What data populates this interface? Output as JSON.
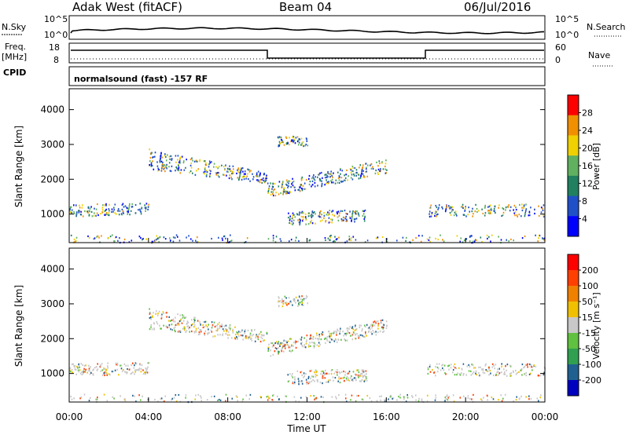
{
  "header": {
    "station": "Adak West (fitACF)",
    "beam": "Beam 04",
    "date": "06/Jul/2016"
  },
  "noise_panel": {
    "left_label": "N.Sky",
    "right_label": "N.Search",
    "left_ticks": [
      "10^5",
      "10^0"
    ],
    "right_ticks": [
      "10^5",
      "10^0"
    ]
  },
  "freq_panel": {
    "left_label_line1": "Freq.",
    "left_label_line2": "[MHz]",
    "left_ticks": [
      "18",
      "8"
    ],
    "right_label": "Nave",
    "right_ticks": [
      "60",
      "0"
    ],
    "cpid_label": "CPID",
    "cpid_text": "normalsound (fast) -157 RF"
  },
  "chart_data": [
    {
      "type": "heatmap",
      "name": "power",
      "ylabel": "Slant Range [km]",
      "y_ticks": [
        "4000",
        "3000",
        "2000",
        "1000"
      ],
      "y_tick_values": [
        4000,
        3000,
        2000,
        1000
      ],
      "ylim": [
        180,
        4600
      ],
      "colorbar_label": "Power [dB]",
      "colorbar_ticks": [
        "28",
        "24",
        "20",
        "16",
        "12",
        "8",
        "4"
      ],
      "colorbar_range": [
        0,
        32
      ],
      "colorbar_colors": [
        "#0000ff",
        "#2050c8",
        "#208060",
        "#60b060",
        "#f0d000",
        "#f09000",
        "#ff0000"
      ]
    },
    {
      "type": "heatmap",
      "name": "velocity",
      "ylabel": "Slant Range [km]",
      "y_ticks": [
        "4000",
        "3000",
        "2000",
        "1000"
      ],
      "y_tick_values": [
        4000,
        3000,
        2000,
        1000
      ],
      "ylim": [
        180,
        4600
      ],
      "colorbar_label": "Velocity [m s⁻¹]",
      "colorbar_ticks": [
        "200",
        "100",
        "50",
        "15",
        "-15",
        "-50",
        "-100",
        "-200"
      ],
      "colorbar_colors": [
        "#0000c0",
        "#206090",
        "#30a050",
        "#60c040",
        "#c8c8c8",
        "#f0c000",
        "#f08000",
        "#ff4000",
        "#ff0000"
      ]
    }
  ],
  "x_axis": {
    "label": "Time UT",
    "ticks": [
      "00:00",
      "04:00",
      "08:00",
      "12:00",
      "16:00",
      "20:00",
      "00:00"
    ],
    "tick_hours": [
      0,
      4,
      8,
      12,
      16,
      20,
      24
    ]
  }
}
